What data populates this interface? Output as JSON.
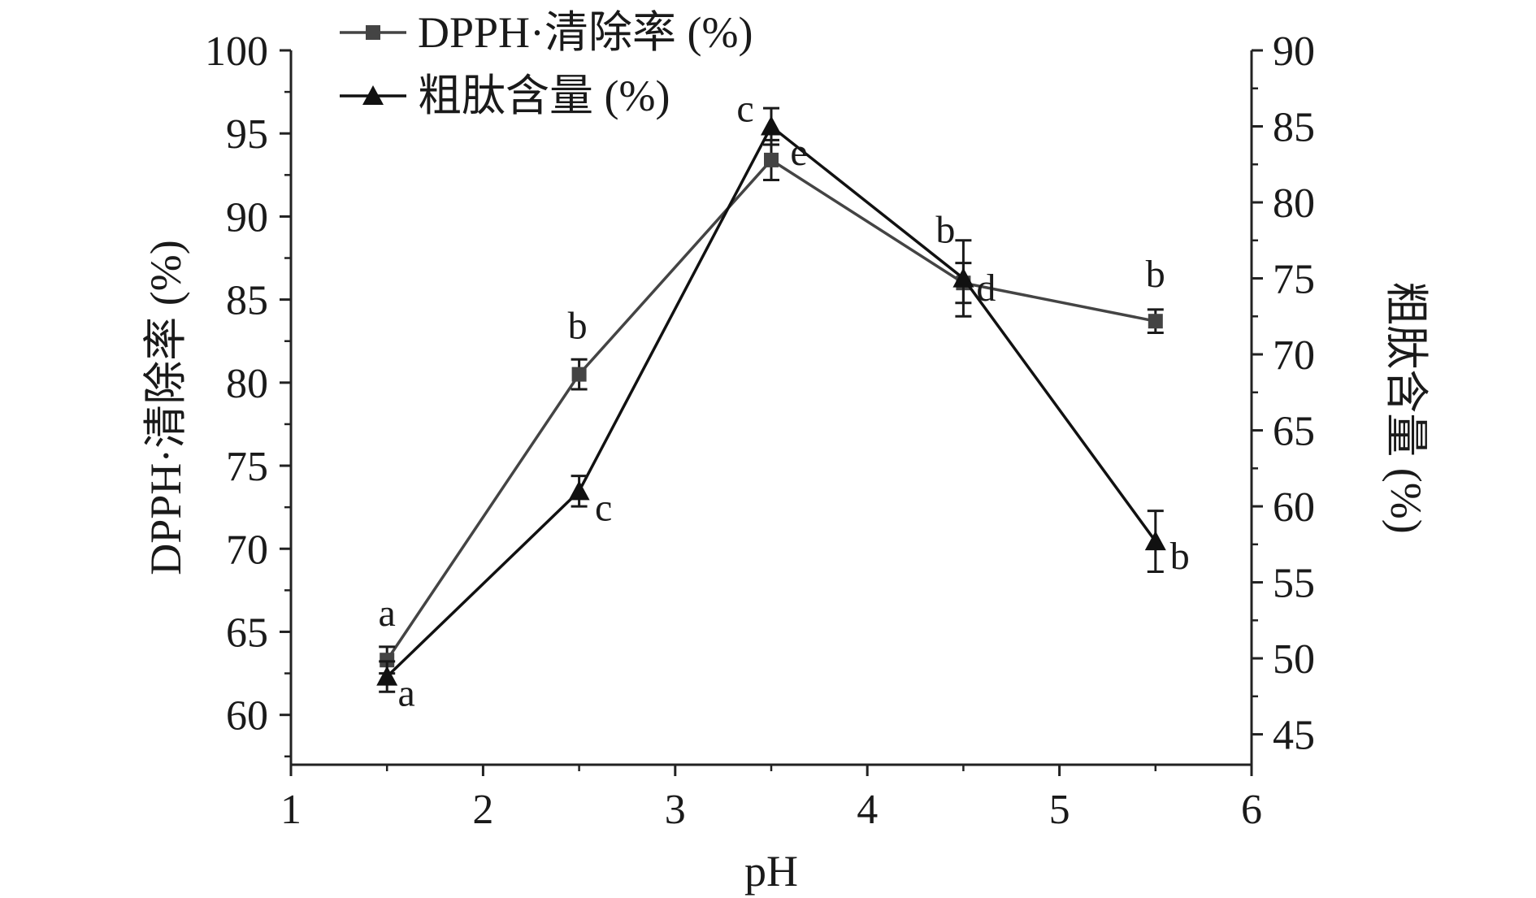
{
  "chart_data": {
    "type": "line",
    "x": [
      1.5,
      2.5,
      3.5,
      4.5,
      5.5
    ],
    "xlabel": "pH",
    "xlim": [
      1,
      6
    ],
    "xticks": [
      "1",
      "2",
      "3",
      "4",
      "5",
      "6"
    ],
    "left_axis": {
      "label": "DPPH·清除率 (%)",
      "ylim": [
        57,
        100
      ],
      "ticks": [
        "60",
        "65",
        "70",
        "75",
        "80",
        "85",
        "90",
        "95",
        "100"
      ]
    },
    "right_axis": {
      "label": "粗肽含量 (%)",
      "ylim": [
        43,
        90
      ],
      "ticks": [
        "45",
        "50",
        "55",
        "60",
        "65",
        "70",
        "75",
        "80",
        "85",
        "90"
      ]
    },
    "series": [
      {
        "name": "DPPH·清除率 (%)",
        "axis": "left",
        "marker": "square",
        "color": "#444444",
        "values": [
          63.3,
          80.5,
          93.4,
          86.0,
          83.7
        ],
        "errors": [
          0.8,
          0.9,
          1.2,
          1.2,
          0.7
        ],
        "sig_labels": [
          "a",
          "b",
          "e",
          "d",
          "b"
        ]
      },
      {
        "name": "粗肽含量 (%)",
        "axis": "right",
        "marker": "triangle",
        "color": "#111111",
        "values": [
          48.8,
          61.0,
          85.0,
          75.0,
          57.7
        ],
        "errors": [
          1.0,
          1.0,
          1.2,
          2.5,
          2.0
        ],
        "sig_labels": [
          "a",
          "c",
          "c",
          "b",
          "b"
        ]
      }
    ],
    "legend": {
      "position": "top-left"
    },
    "grid": false
  }
}
